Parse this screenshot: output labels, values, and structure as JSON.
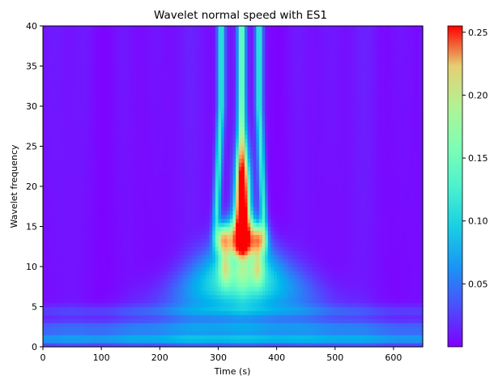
{
  "chart_data": {
    "type": "heatmap",
    "title": "Wavelet normal speed with ES1",
    "xlabel": "Time (s)",
    "ylabel": "Wavelet frequency",
    "xlim": [
      0,
      650
    ],
    "ylim": [
      0,
      40
    ],
    "x_ticks": [
      "0",
      "100",
      "200",
      "300",
      "400",
      "500",
      "600"
    ],
    "y_ticks": [
      "0",
      "5",
      "10",
      "15",
      "20",
      "25",
      "30",
      "35",
      "40"
    ],
    "colorbar": {
      "colormap": "rainbow",
      "range": [
        0.0,
        0.255
      ],
      "ticks": [
        "0.05",
        "0.10",
        "0.15",
        "0.20",
        "0.25"
      ]
    },
    "features": {
      "low_frequency_bands": [
        {
          "y": 1.0,
          "value": 0.06
        },
        {
          "y": 2.5,
          "value": 0.035
        },
        {
          "y": 4.5,
          "value": 0.02
        }
      ],
      "event_center_time": 340,
      "event_peak_frequency": 18,
      "peak_value": 0.255,
      "high_frequency_ridges_time": [
        305,
        340,
        370
      ]
    }
  }
}
